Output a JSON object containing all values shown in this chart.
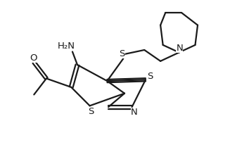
{
  "background_color": "#ffffff",
  "line_color": "#1a1a1a",
  "line_width": 1.6,
  "text_color": "#1a1a1a",
  "figsize": [
    3.54,
    2.16
  ],
  "dpi": 100,
  "xlim": [
    0,
    10
  ],
  "ylim": [
    0,
    6
  ],
  "font_size_atom": 9.5,
  "font_size_nh2": 9.5
}
